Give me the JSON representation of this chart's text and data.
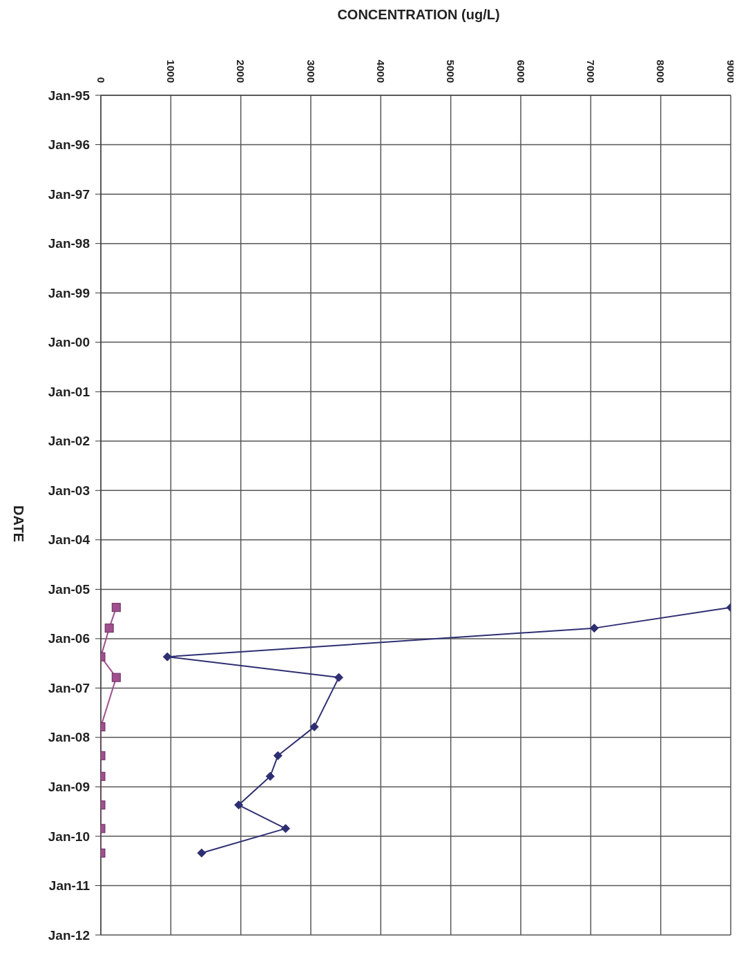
{
  "chart_data": {
    "type": "line",
    "orientation": "horizontal",
    "xlabel": "CONCENTRATION (ug/L)",
    "ylabel": "DATE",
    "x": [
      "2005-05-15",
      "2005-10-15",
      "2006-05-15",
      "2006-10-15",
      "2007-10-15",
      "2008-05-15",
      "2008-10-15",
      "2009-05-15",
      "2009-11-05",
      "2010-05-05"
    ],
    "series": [
      {
        "color": "#2e2e72",
        "marker": "diamond",
        "values": [
          9000,
          7050,
          950,
          3400,
          3050,
          2530,
          2420,
          1970,
          2640,
          1440
        ]
      },
      {
        "color": "#a0508e",
        "marker": "square",
        "values": [
          220,
          120,
          0,
          220,
          0,
          0,
          0,
          0,
          0,
          0
        ]
      }
    ],
    "xlim": [
      0,
      9000
    ],
    "xticks": [
      0,
      1000,
      2000,
      3000,
      4000,
      5000,
      6000,
      7000,
      8000,
      9000
    ],
    "ylim": [
      "2012-01",
      "1995-01"
    ],
    "yticks": [
      {
        "value": "1995-01",
        "label": "Jan-95"
      },
      {
        "value": "1996-01",
        "label": "Jan-96"
      },
      {
        "value": "1997-01",
        "label": "Jan-97"
      },
      {
        "value": "1998-01",
        "label": "Jan-98"
      },
      {
        "value": "1999-01",
        "label": "Jan-99"
      },
      {
        "value": "2000-01",
        "label": "Jan-00"
      },
      {
        "value": "2001-01",
        "label": "Jan-01"
      },
      {
        "value": "2002-01",
        "label": "Jan-02"
      },
      {
        "value": "2003-01",
        "label": "Jan-03"
      },
      {
        "value": "2004-01",
        "label": "Jan-04"
      },
      {
        "value": "2005-01",
        "label": "Jan-05"
      },
      {
        "value": "2006-01",
        "label": "Jan-06"
      },
      {
        "value": "2007-01",
        "label": "Jan-07"
      },
      {
        "value": "2008-01",
        "label": "Jan-08"
      },
      {
        "value": "2009-01",
        "label": "Jan-09"
      },
      {
        "value": "2010-01",
        "label": "Jan-10"
      },
      {
        "value": "2011-01",
        "label": "Jan-11"
      },
      {
        "value": "2012-01",
        "label": "Jan-12"
      }
    ],
    "grid": true,
    "line_style": "solid"
  }
}
